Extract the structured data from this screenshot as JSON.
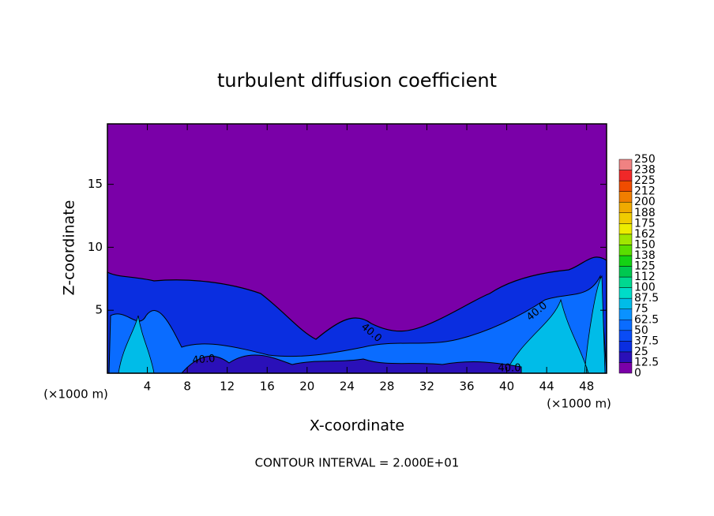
{
  "chart_data": {
    "type": "contour",
    "title": "turbulent diffusion coefficient",
    "x_label": "X-coordinate",
    "y_label": "Z-coordinate",
    "x_unit": "(×1000 m)",
    "y_unit": "(×1000 m)",
    "footer": "CONTOUR INTERVAL = 2.000E+01",
    "contour_labels": [
      "40.0",
      "40.0",
      "40.0",
      "40.0"
    ],
    "xlim": [
      0,
      50
    ],
    "ylim": [
      0,
      19.8
    ],
    "xticks": [
      4,
      8,
      12,
      16,
      20,
      24,
      28,
      32,
      36,
      40,
      44,
      48
    ],
    "yticks": [
      5,
      10,
      15
    ],
    "background_color": "#7a00a8",
    "colorbar": {
      "levels": [
        0,
        12.5,
        25,
        37.5,
        50,
        62.5,
        75,
        87.5,
        100,
        {
          "value": 112.5,
          "label": "112"
        },
        125,
        {
          "value": 137.5,
          "label": "138"
        },
        150,
        {
          "value": 162.5,
          "label": "162"
        },
        175,
        {
          "value": 187.5,
          "label": "188"
        },
        200,
        {
          "value": 212.5,
          "label": "212"
        },
        225,
        {
          "value": 237.5,
          "label": "238"
        },
        250
      ],
      "colors": [
        "#7a00a8",
        "#2a10b8",
        "#0a2ee0",
        "#0a4cf5",
        "#0a6cff",
        "#0a92ff",
        "#00bce8",
        "#00dcc8",
        "#00d890",
        "#00c850",
        "#14d214",
        "#5ade00",
        "#a0e600",
        "#ecec00",
        "#f0cc00",
        "#f0aa00",
        "#f07e00",
        "#f04c00",
        "#f02828",
        "#f08282"
      ]
    }
  }
}
